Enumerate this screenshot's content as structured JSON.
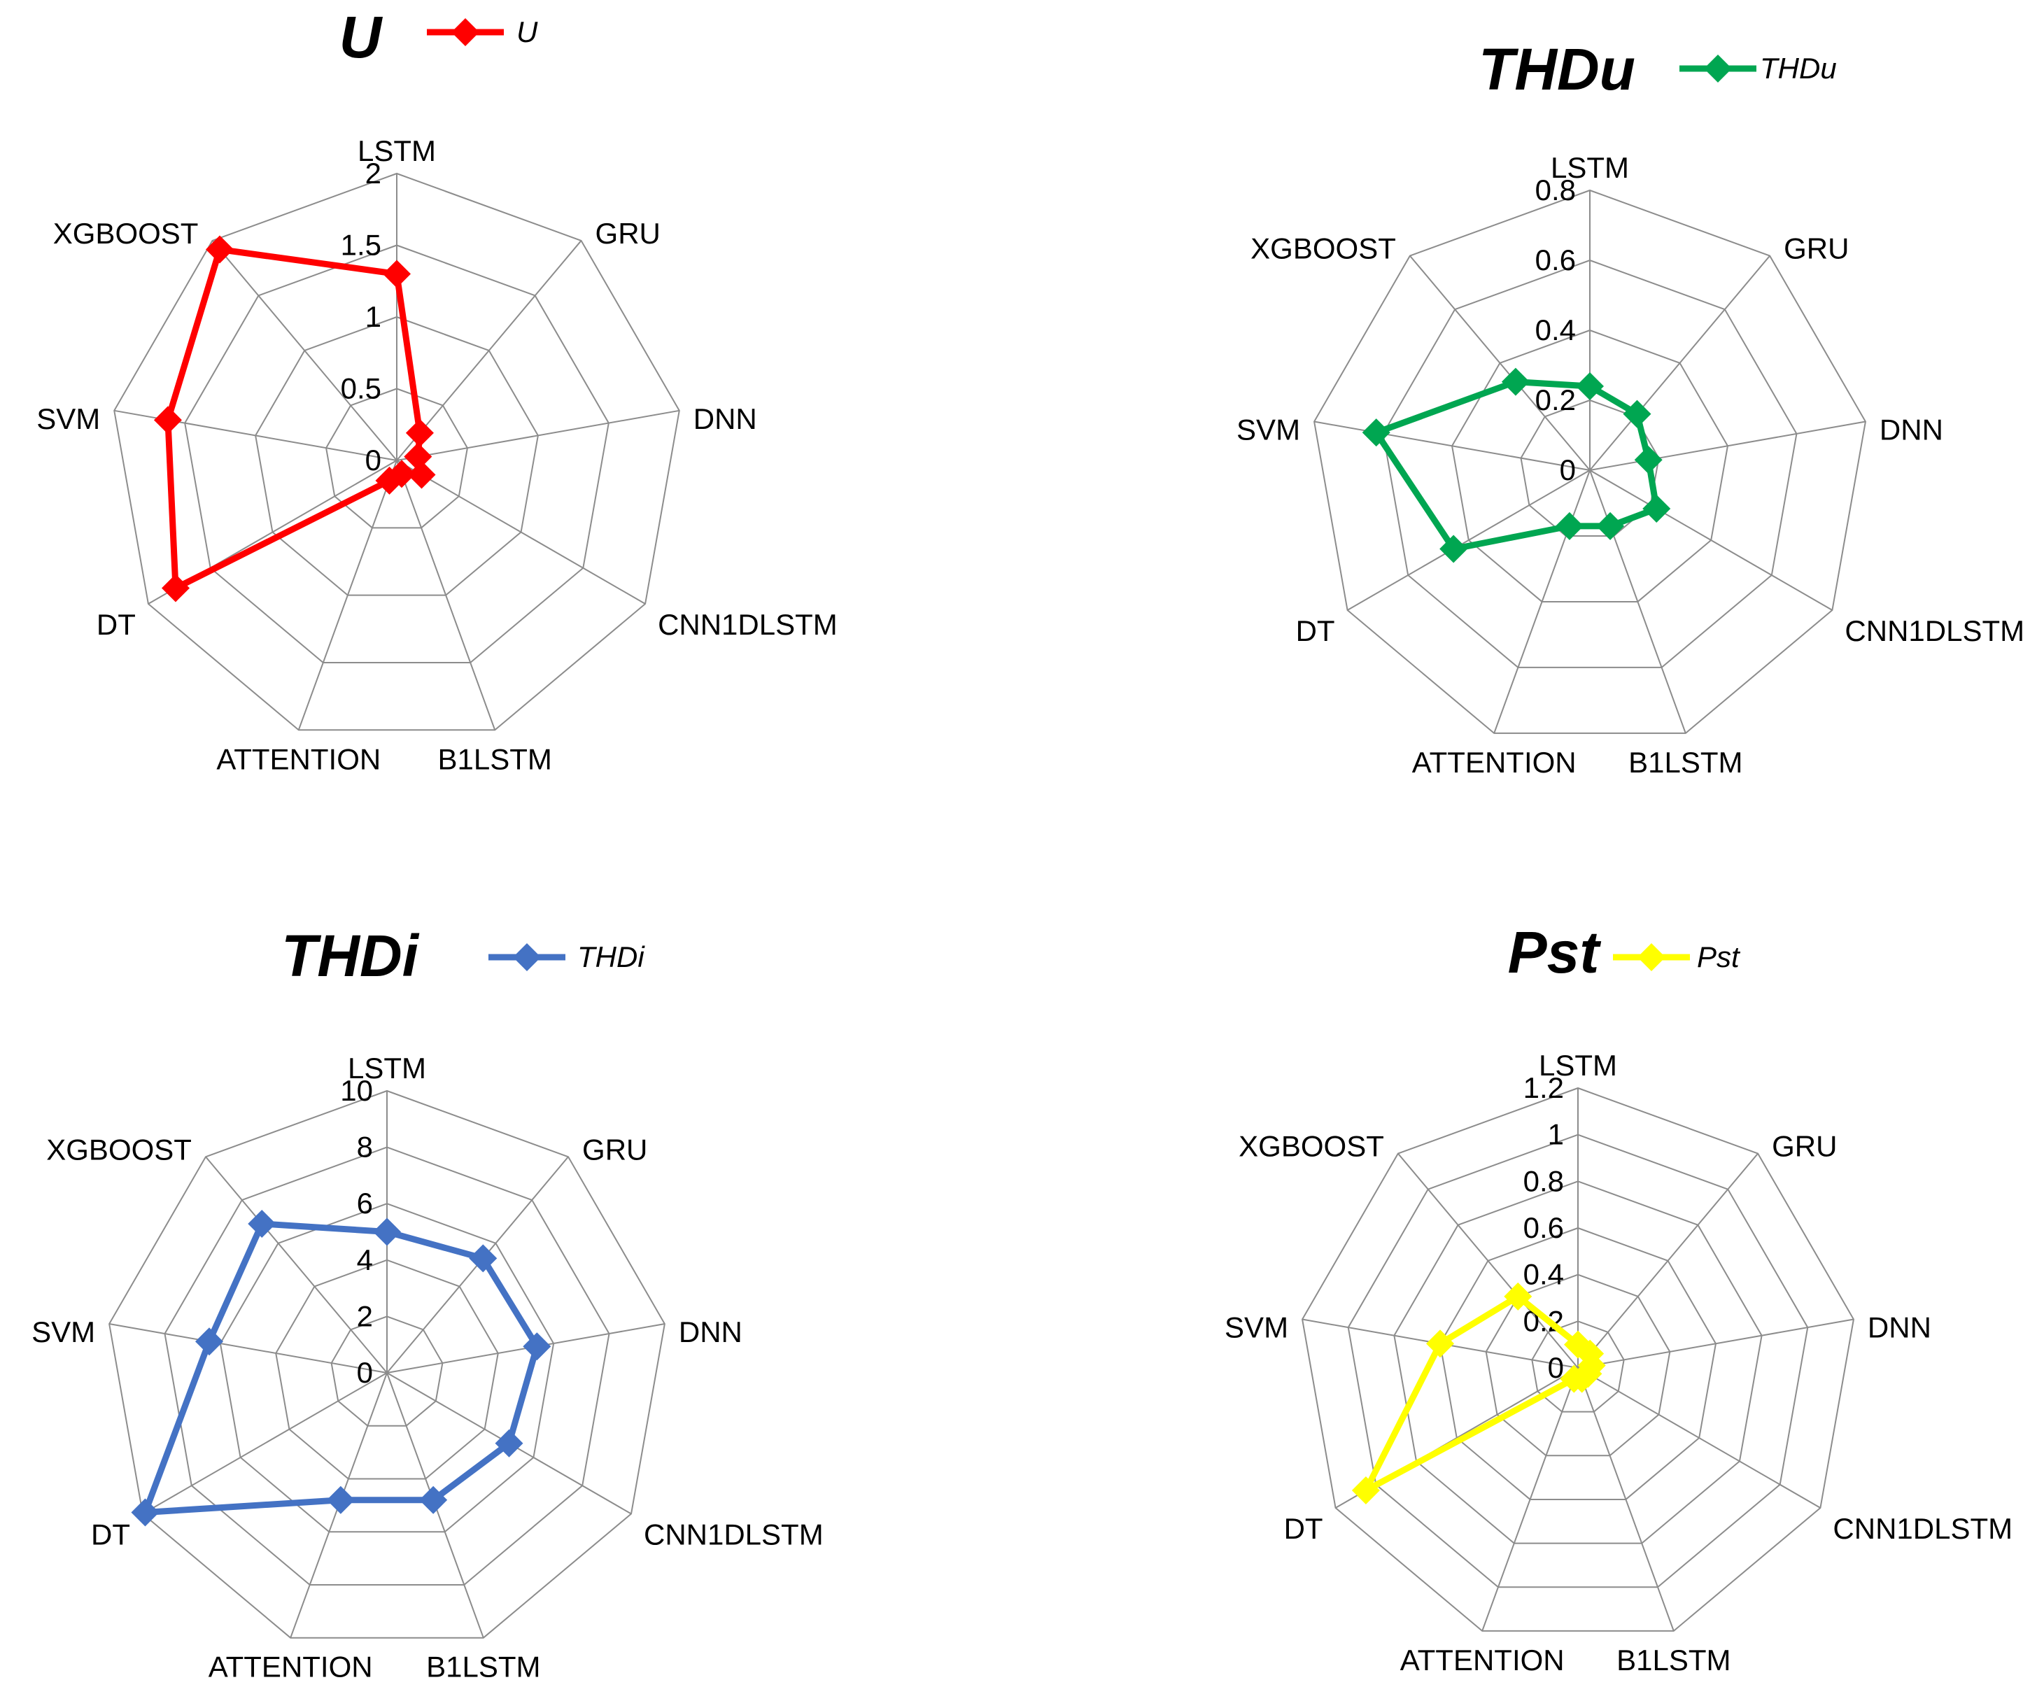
{
  "chart_data": [
    {
      "type": "radar",
      "title": "U",
      "legend": "U",
      "color": "#ff0000",
      "categories": [
        "LSTM",
        "GRU",
        "DNN",
        "CNN1DLSTM",
        "B1LSTM",
        "ATTENTION",
        "DT",
        "SVM",
        "XGBOOST"
      ],
      "ticks": [
        "0",
        "0.5",
        "1",
        "1.5",
        "2"
      ],
      "rmax": 2,
      "values": [
        1.3,
        0.25,
        0.15,
        0.2,
        0.1,
        0.15,
        1.78,
        1.62,
        1.92
      ]
    },
    {
      "type": "radar",
      "title": "THDu",
      "legend": "THDu",
      "color": "#00a651",
      "categories": [
        "LSTM",
        "GRU",
        "DNN",
        "CNN1DLSTM",
        "B1LSTM",
        "ATTENTION",
        "DT",
        "SVM",
        "XGBOOST"
      ],
      "ticks": [
        "0",
        "0.2",
        "0.4",
        "0.6",
        "0.8"
      ],
      "rmax": 0.8,
      "values": [
        0.24,
        0.21,
        0.17,
        0.22,
        0.17,
        0.17,
        0.45,
        0.62,
        0.33
      ]
    },
    {
      "type": "radar",
      "title": "THDi",
      "legend": "THDi",
      "color": "#4472c4",
      "categories": [
        "LSTM",
        "GRU",
        "DNN",
        "CNN1DLSTM",
        "B1LSTM",
        "ATTENTION",
        "DT",
        "SVM",
        "XGBOOST"
      ],
      "ticks": [
        "0",
        "2",
        "4",
        "6",
        "8",
        "10"
      ],
      "rmax": 10,
      "values": [
        5.0,
        5.3,
        5.4,
        5.0,
        4.8,
        4.8,
        9.9,
        6.4,
        6.9
      ]
    },
    {
      "type": "radar",
      "title": "Pst",
      "legend": "Pst",
      "color": "#ffff00",
      "categories": [
        "LSTM",
        "GRU",
        "DNN",
        "CNN1DLSTM",
        "B1LSTM",
        "ATTENTION",
        "DT",
        "SVM",
        "XGBOOST"
      ],
      "ticks": [
        "0",
        "0.2",
        "0.4",
        "0.6",
        "0.8",
        "1",
        "1.2"
      ],
      "rmax": 1.2,
      "values": [
        0.1,
        0.08,
        0.06,
        0.05,
        0.05,
        0.05,
        1.05,
        0.6,
        0.4
      ]
    }
  ]
}
